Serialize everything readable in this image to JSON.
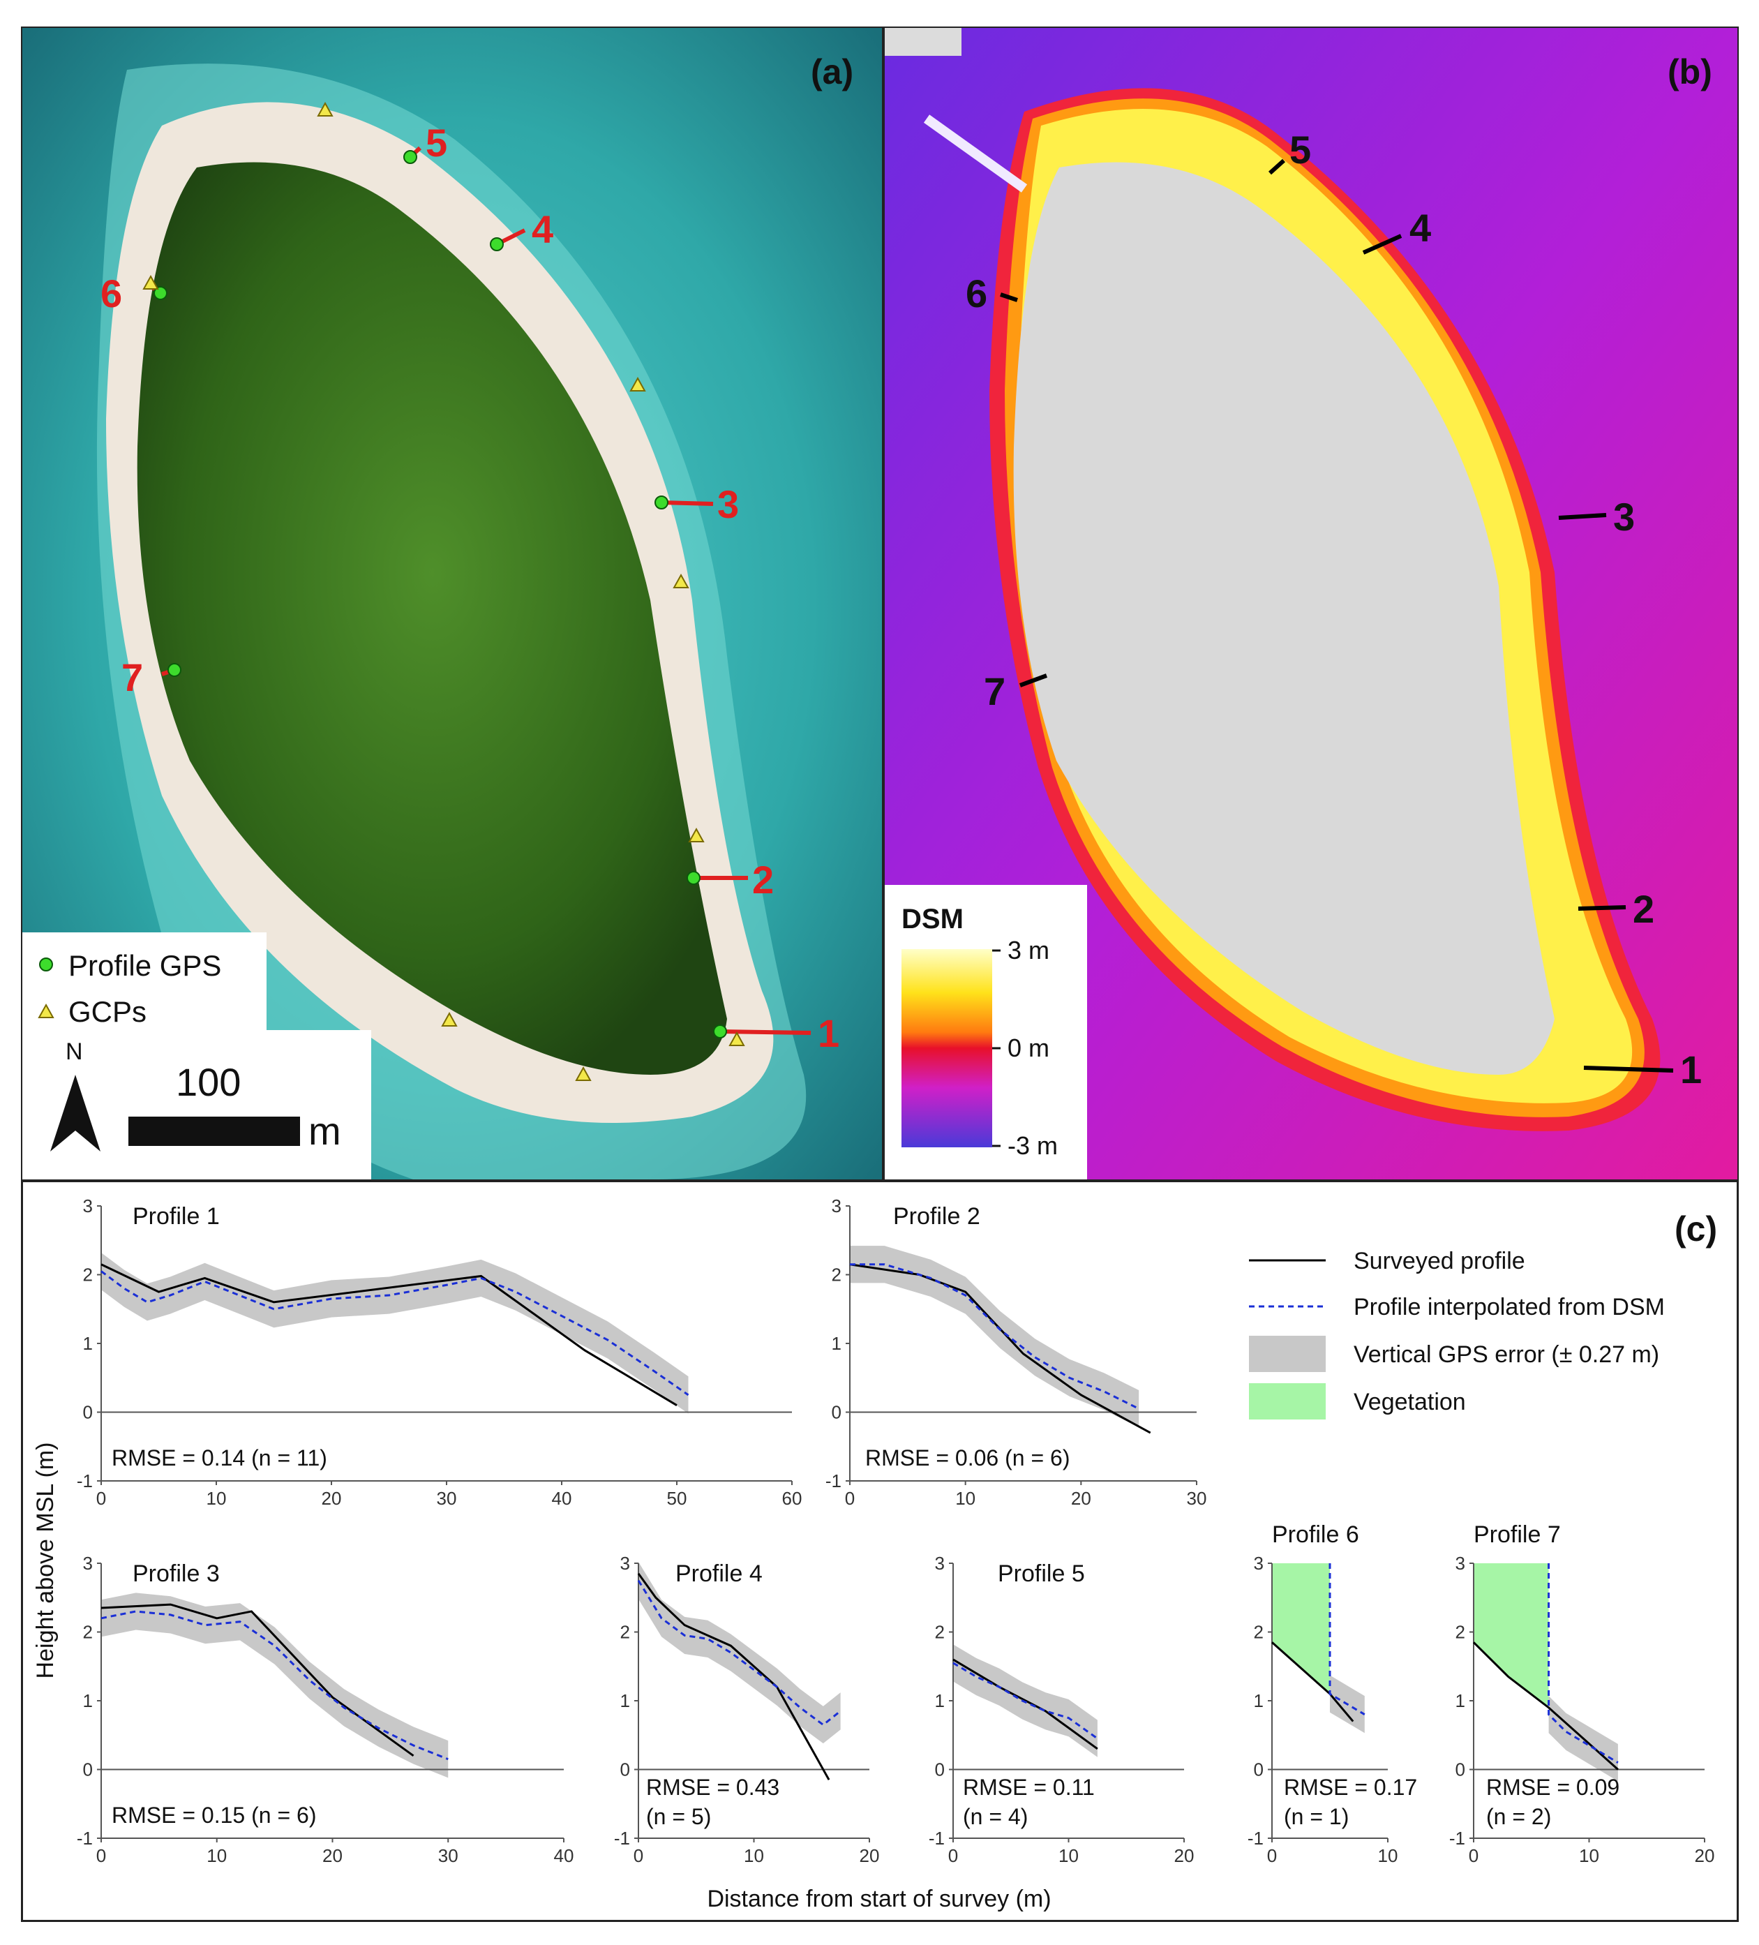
{
  "panel_a": {
    "label": "(a)",
    "legend": {
      "profile_gps": "Profile GPS",
      "gcps": "GCPs"
    },
    "north": "N",
    "scale_value": "100",
    "scale_unit": "m",
    "profile_numbers": [
      "1",
      "2",
      "3",
      "4",
      "5",
      "6",
      "7"
    ]
  },
  "panel_b": {
    "label": "(b)",
    "legend_title": "DSM",
    "legend_ticks": [
      "3 m",
      "0 m",
      "-3 m"
    ],
    "profile_numbers": [
      "1",
      "2",
      "3",
      "4",
      "5",
      "6",
      "7"
    ]
  },
  "panel_c": {
    "label": "(c)",
    "ylabel": "Height above MSL (m)",
    "xlabel": "Distance from start of survey (m)",
    "legend": {
      "surveyed": "Surveyed profile",
      "interpolated": "Profile interpolated from DSM",
      "gps_error": "Vertical GPS error (± 0.27 m)",
      "vegetation": "Vegetation"
    },
    "colors": {
      "surveyed": "#000000",
      "interpolated": "#1a2fd6",
      "error_band": "#c8c8c8",
      "vegetation": "#a6f5a6"
    }
  },
  "chart_data": [
    {
      "type": "line",
      "title": "Profile 1",
      "rmse_text": "RMSE = 0.14 (n = 11)",
      "xlim": [
        0,
        60
      ],
      "xticks": [
        0,
        10,
        20,
        30,
        40,
        50,
        60
      ],
      "ylim": [
        -1,
        3
      ],
      "yticks": [
        -1,
        0,
        1,
        2,
        3
      ],
      "series": [
        {
          "name": "Surveyed profile",
          "x": [
            0,
            5,
            9,
            15,
            33,
            42,
            50
          ],
          "y": [
            2.15,
            1.75,
            1.95,
            1.6,
            1.98,
            0.9,
            0.1
          ]
        },
        {
          "name": "Profile interpolated from DSM",
          "x": [
            0,
            2,
            4,
            6,
            9,
            12,
            15,
            20,
            25,
            30,
            33,
            36,
            40,
            44,
            48,
            51
          ],
          "y": [
            2.05,
            1.8,
            1.6,
            1.7,
            1.9,
            1.7,
            1.5,
            1.65,
            1.7,
            1.85,
            1.95,
            1.75,
            1.4,
            1.05,
            0.6,
            0.25
          ]
        }
      ],
      "vegetation_x_end": null
    },
    {
      "type": "line",
      "title": "Profile 2",
      "rmse_text": "RMSE = 0.06 (n = 6)",
      "xlim": [
        0,
        30
      ],
      "xticks": [
        0,
        10,
        20,
        30
      ],
      "ylim": [
        -1,
        3
      ],
      "yticks": [
        -1,
        0,
        1,
        2,
        3
      ],
      "series": [
        {
          "name": "Surveyed profile",
          "x": [
            0,
            6,
            10,
            15,
            20,
            26
          ],
          "y": [
            2.15,
            2.0,
            1.75,
            0.85,
            0.25,
            -0.3
          ]
        },
        {
          "name": "Profile interpolated from DSM",
          "x": [
            0,
            3,
            7,
            10,
            13,
            16,
            19,
            22,
            25
          ],
          "y": [
            2.15,
            2.15,
            1.95,
            1.7,
            1.2,
            0.8,
            0.5,
            0.3,
            0.05
          ]
        }
      ],
      "vegetation_x_end": null
    },
    {
      "type": "line",
      "title": "Profile 3",
      "rmse_text": "RMSE = 0.15 (n = 6)",
      "xlim": [
        0,
        40
      ],
      "xticks": [
        0,
        10,
        20,
        30,
        40
      ],
      "ylim": [
        -1,
        3
      ],
      "yticks": [
        -1,
        0,
        1,
        2,
        3
      ],
      "series": [
        {
          "name": "Surveyed profile",
          "x": [
            0,
            6,
            10,
            13,
            20,
            27
          ],
          "y": [
            2.35,
            2.4,
            2.2,
            2.3,
            1.05,
            0.2
          ]
        },
        {
          "name": "Profile interpolated from DSM",
          "x": [
            0,
            3,
            6,
            9,
            12,
            15,
            18,
            21,
            24,
            27,
            30
          ],
          "y": [
            2.2,
            2.3,
            2.25,
            2.1,
            2.15,
            1.8,
            1.3,
            0.9,
            0.6,
            0.35,
            0.15
          ]
        }
      ],
      "vegetation_x_end": null
    },
    {
      "type": "line",
      "title": "Profile 4",
      "rmse_text": "RMSE = 0.43",
      "n_text": "(n = 5)",
      "xlim": [
        0,
        20
      ],
      "xticks": [
        0,
        10,
        20
      ],
      "ylim": [
        -1,
        3
      ],
      "yticks": [
        -1,
        0,
        1,
        2,
        3
      ],
      "series": [
        {
          "name": "Surveyed profile",
          "x": [
            0,
            1.5,
            4,
            8,
            12,
            14,
            16.5
          ],
          "y": [
            2.85,
            2.5,
            2.1,
            1.8,
            1.2,
            0.6,
            -0.15
          ]
        },
        {
          "name": "Profile interpolated from DSM",
          "x": [
            0,
            2,
            4,
            6,
            8,
            10,
            12,
            14,
            16,
            17.5
          ],
          "y": [
            2.75,
            2.2,
            1.95,
            1.9,
            1.7,
            1.45,
            1.2,
            0.9,
            0.65,
            0.85
          ]
        }
      ],
      "vegetation_x_end": null
    },
    {
      "type": "line",
      "title": "Profile 5",
      "rmse_text": "RMSE = 0.11",
      "n_text": "(n = 4)",
      "xlim": [
        0,
        20
      ],
      "xticks": [
        0,
        10,
        20
      ],
      "ylim": [
        -1,
        3
      ],
      "yticks": [
        -1,
        0,
        1,
        2,
        3
      ],
      "series": [
        {
          "name": "Surveyed profile",
          "x": [
            0,
            4,
            8,
            12.5
          ],
          "y": [
            1.6,
            1.2,
            0.85,
            0.3
          ]
        },
        {
          "name": "Profile interpolated from DSM",
          "x": [
            0,
            2,
            4,
            6,
            8,
            10,
            12.5
          ],
          "y": [
            1.55,
            1.35,
            1.2,
            1.0,
            0.85,
            0.75,
            0.45
          ]
        }
      ],
      "vegetation_x_end": null
    },
    {
      "type": "line",
      "title": "Profile 6",
      "rmse_text": "RMSE = 0.17",
      "n_text": "(n = 1)",
      "xlim": [
        0,
        10
      ],
      "xticks": [
        0,
        10
      ],
      "ylim": [
        -1,
        3
      ],
      "yticks": [
        -1,
        0,
        1,
        2,
        3
      ],
      "series": [
        {
          "name": "Surveyed profile",
          "x": [
            0,
            5,
            7
          ],
          "y": [
            1.85,
            1.1,
            0.7
          ]
        },
        {
          "name": "Profile interpolated from DSM",
          "x": [
            5,
            5,
            6.5,
            8
          ],
          "y": [
            3.0,
            1.1,
            0.95,
            0.8
          ]
        }
      ],
      "vegetation_x_end": 5
    },
    {
      "type": "line",
      "title": "Profile 7",
      "rmse_text": "RMSE = 0.09",
      "n_text": "(n = 2)",
      "xlim": [
        0,
        20
      ],
      "xticks": [
        0,
        10,
        20
      ],
      "ylim": [
        -1,
        3
      ],
      "yticks": [
        -1,
        0,
        1,
        2,
        3
      ],
      "series": [
        {
          "name": "Surveyed profile",
          "x": [
            0,
            3,
            6.5,
            12.5
          ],
          "y": [
            1.85,
            1.35,
            0.9,
            0.0
          ]
        },
        {
          "name": "Profile interpolated from DSM",
          "x": [
            6.5,
            6.5,
            8,
            10,
            12.5
          ],
          "y": [
            3.0,
            0.8,
            0.55,
            0.35,
            0.1
          ]
        }
      ],
      "vegetation_x_end": 6.5
    }
  ]
}
